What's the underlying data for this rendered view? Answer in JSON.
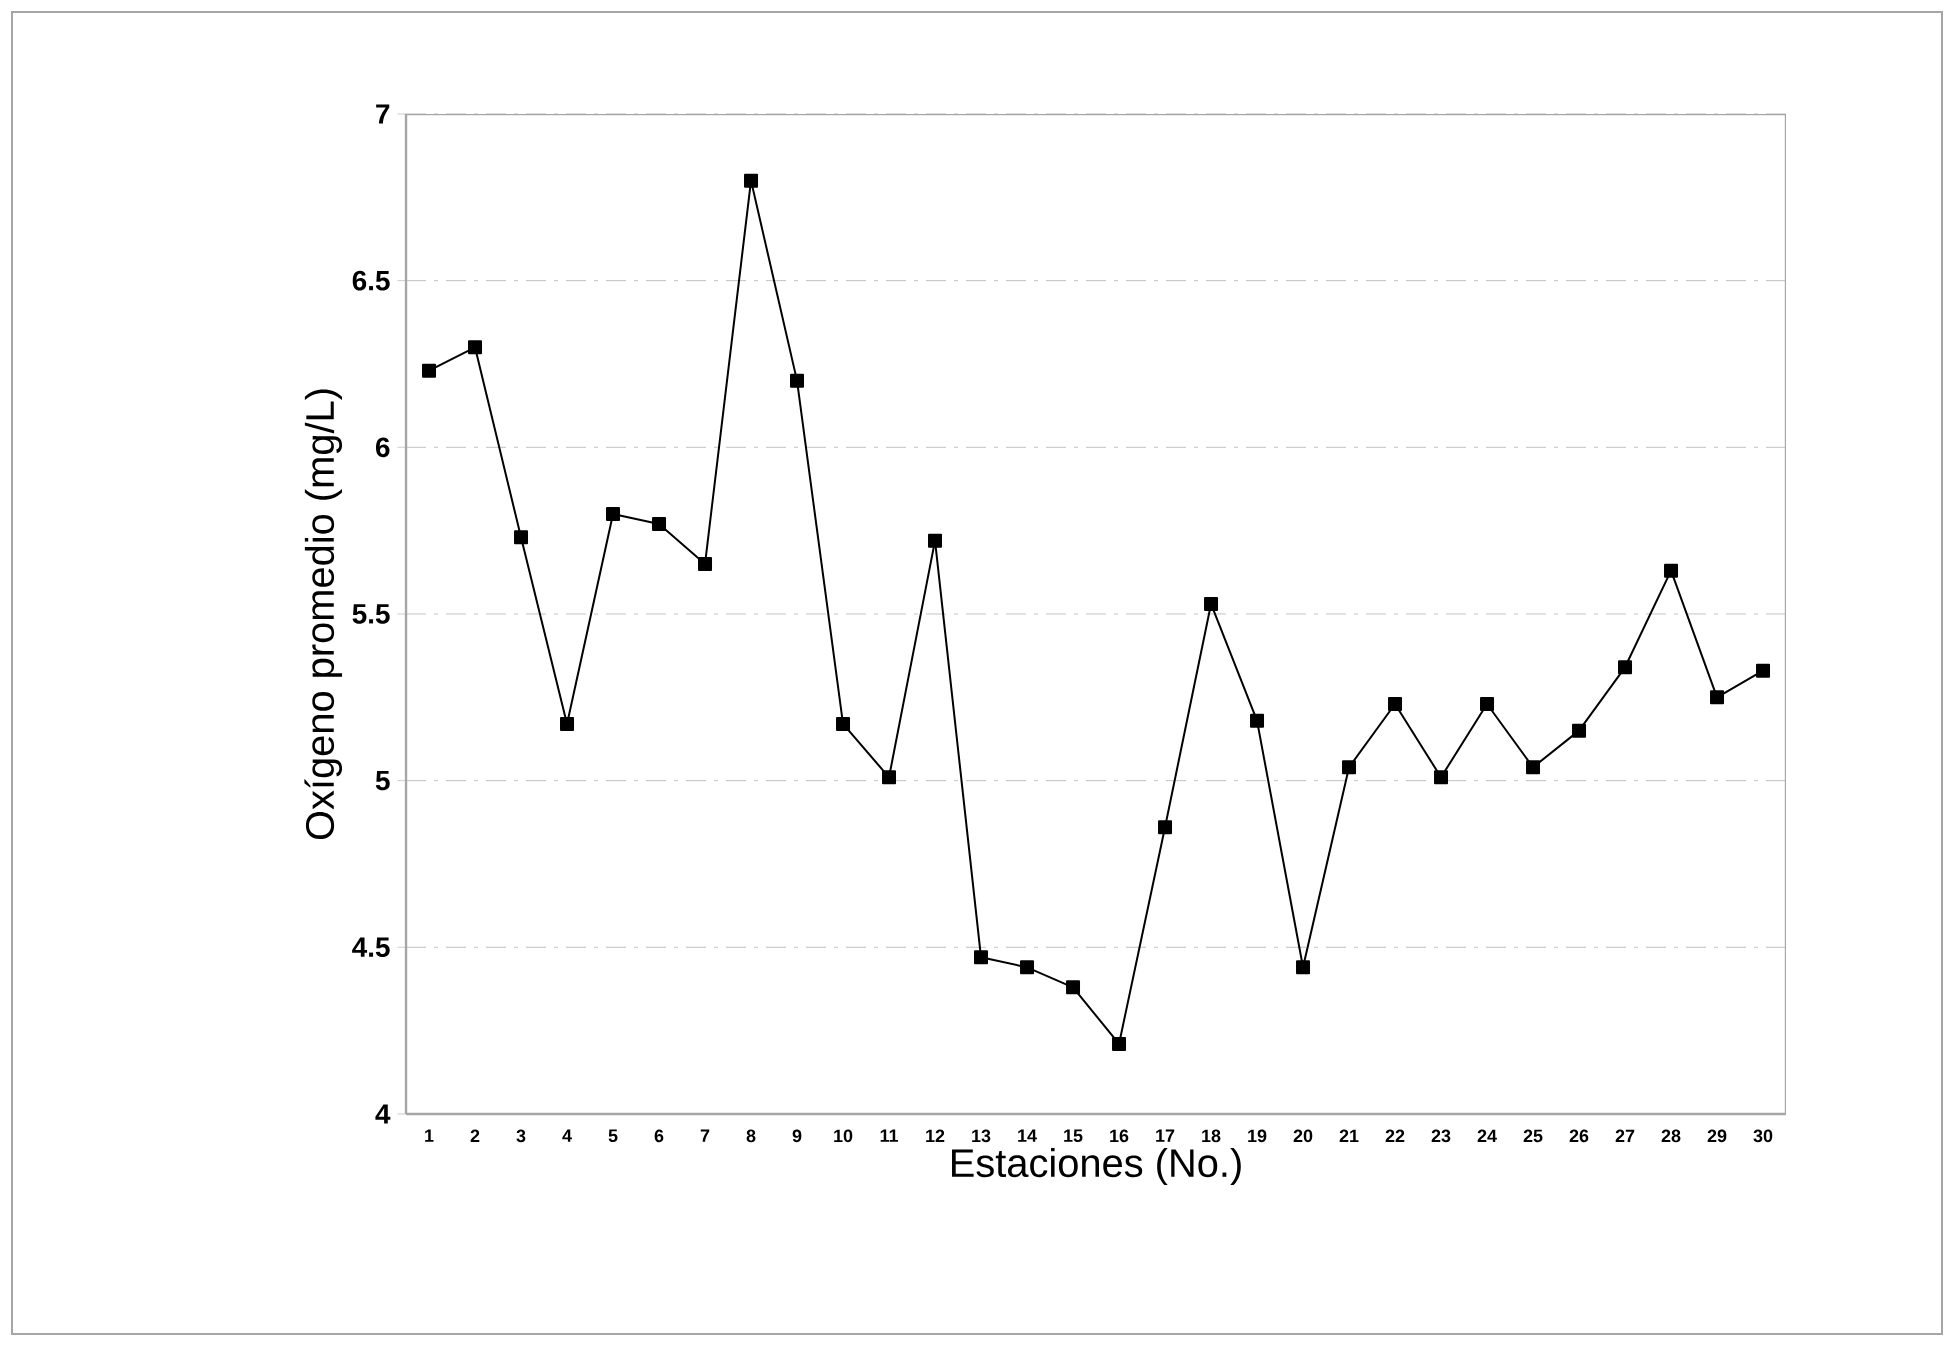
{
  "chart_data": {
    "type": "line",
    "xlabel": "Estaciones (No.)",
    "ylabel": "Oxígeno promedio (mg/L)",
    "categories": [
      "1",
      "2",
      "3",
      "4",
      "5",
      "6",
      "7",
      "8",
      "9",
      "10",
      "11",
      "12",
      "13",
      "14",
      "15",
      "16",
      "17",
      "18",
      "19",
      "20",
      "21",
      "22",
      "23",
      "24",
      "25",
      "26",
      "27",
      "28",
      "29",
      "30"
    ],
    "series": [
      {
        "color": "#000000",
        "values": [
          6.23,
          6.3,
          5.73,
          5.17,
          5.8,
          5.77,
          5.65,
          6.8,
          6.2,
          5.17,
          5.01,
          5.72,
          4.47,
          4.44,
          4.38,
          4.21,
          4.86,
          5.53,
          5.18,
          4.44,
          5.04,
          5.23,
          5.01,
          5.23,
          5.04,
          5.15,
          5.34,
          5.63,
          5.25,
          5.33
        ]
      }
    ],
    "ylim": [
      4,
      7
    ],
    "yticks": [
      4,
      4.5,
      5,
      5.5,
      6,
      6.5,
      7
    ],
    "grid": "y",
    "marker": "square",
    "line_style": "solid"
  }
}
